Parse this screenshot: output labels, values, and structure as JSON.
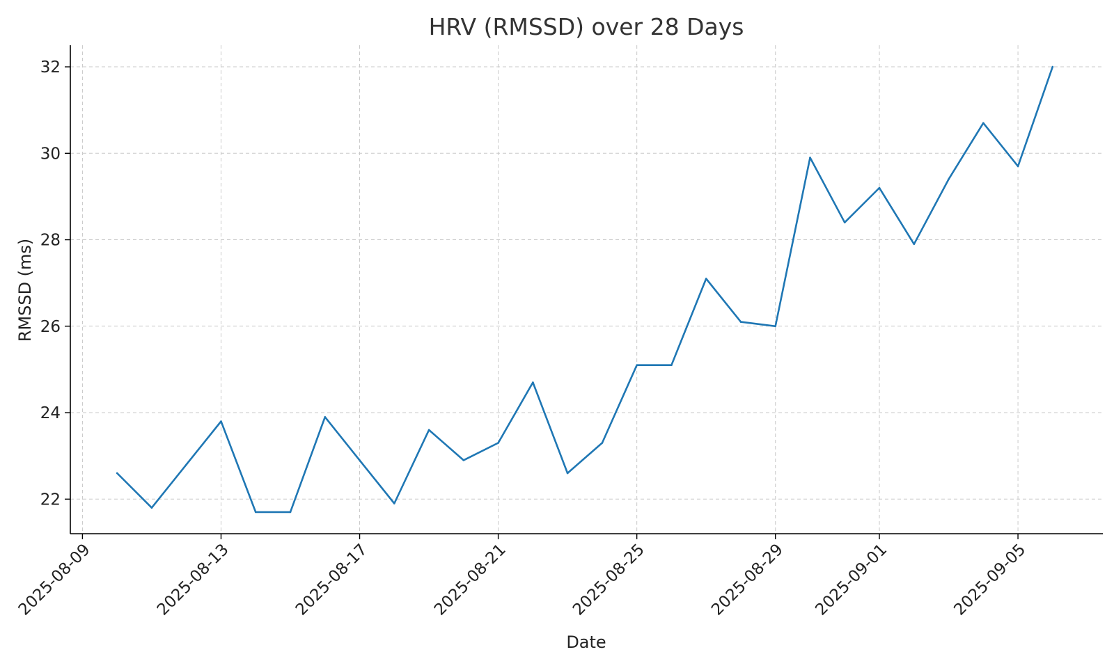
{
  "chart_data": {
    "type": "line",
    "title": "HRV (RMSSD) over 28 Days",
    "xlabel": "Date",
    "ylabel": "RMSSD (ms)",
    "x": [
      "2025-08-10",
      "2025-08-11",
      "2025-08-12",
      "2025-08-13",
      "2025-08-14",
      "2025-08-15",
      "2025-08-16",
      "2025-08-17",
      "2025-08-18",
      "2025-08-19",
      "2025-08-20",
      "2025-08-21",
      "2025-08-22",
      "2025-08-23",
      "2025-08-24",
      "2025-08-25",
      "2025-08-26",
      "2025-08-27",
      "2025-08-28",
      "2025-08-29",
      "2025-08-30",
      "2025-08-31",
      "2025-09-01",
      "2025-09-02",
      "2025-09-03",
      "2025-09-04",
      "2025-09-05",
      "2025-09-06"
    ],
    "series": [
      {
        "color": "#1f77b4",
        "values": [
          22.6,
          21.8,
          22.8,
          23.8,
          21.7,
          21.7,
          23.9,
          22.9,
          21.9,
          23.6,
          22.9,
          23.3,
          24.7,
          22.6,
          23.3,
          25.1,
          25.1,
          27.1,
          26.1,
          26.0,
          29.9,
          28.4,
          29.2,
          27.9,
          29.4,
          30.7,
          29.7,
          32.0
        ]
      }
    ],
    "xticks": [
      "2025-08-09",
      "2025-08-13",
      "2025-08-17",
      "2025-08-21",
      "2025-08-25",
      "2025-08-29",
      "2025-09-01",
      "2025-09-05"
    ],
    "yticks": [
      22,
      24,
      26,
      28,
      30,
      32
    ],
    "xlim": [
      "2025-08-08.65",
      "2025-09-07.45"
    ],
    "ylim": [
      21.2,
      32.5
    ],
    "grid": true
  }
}
